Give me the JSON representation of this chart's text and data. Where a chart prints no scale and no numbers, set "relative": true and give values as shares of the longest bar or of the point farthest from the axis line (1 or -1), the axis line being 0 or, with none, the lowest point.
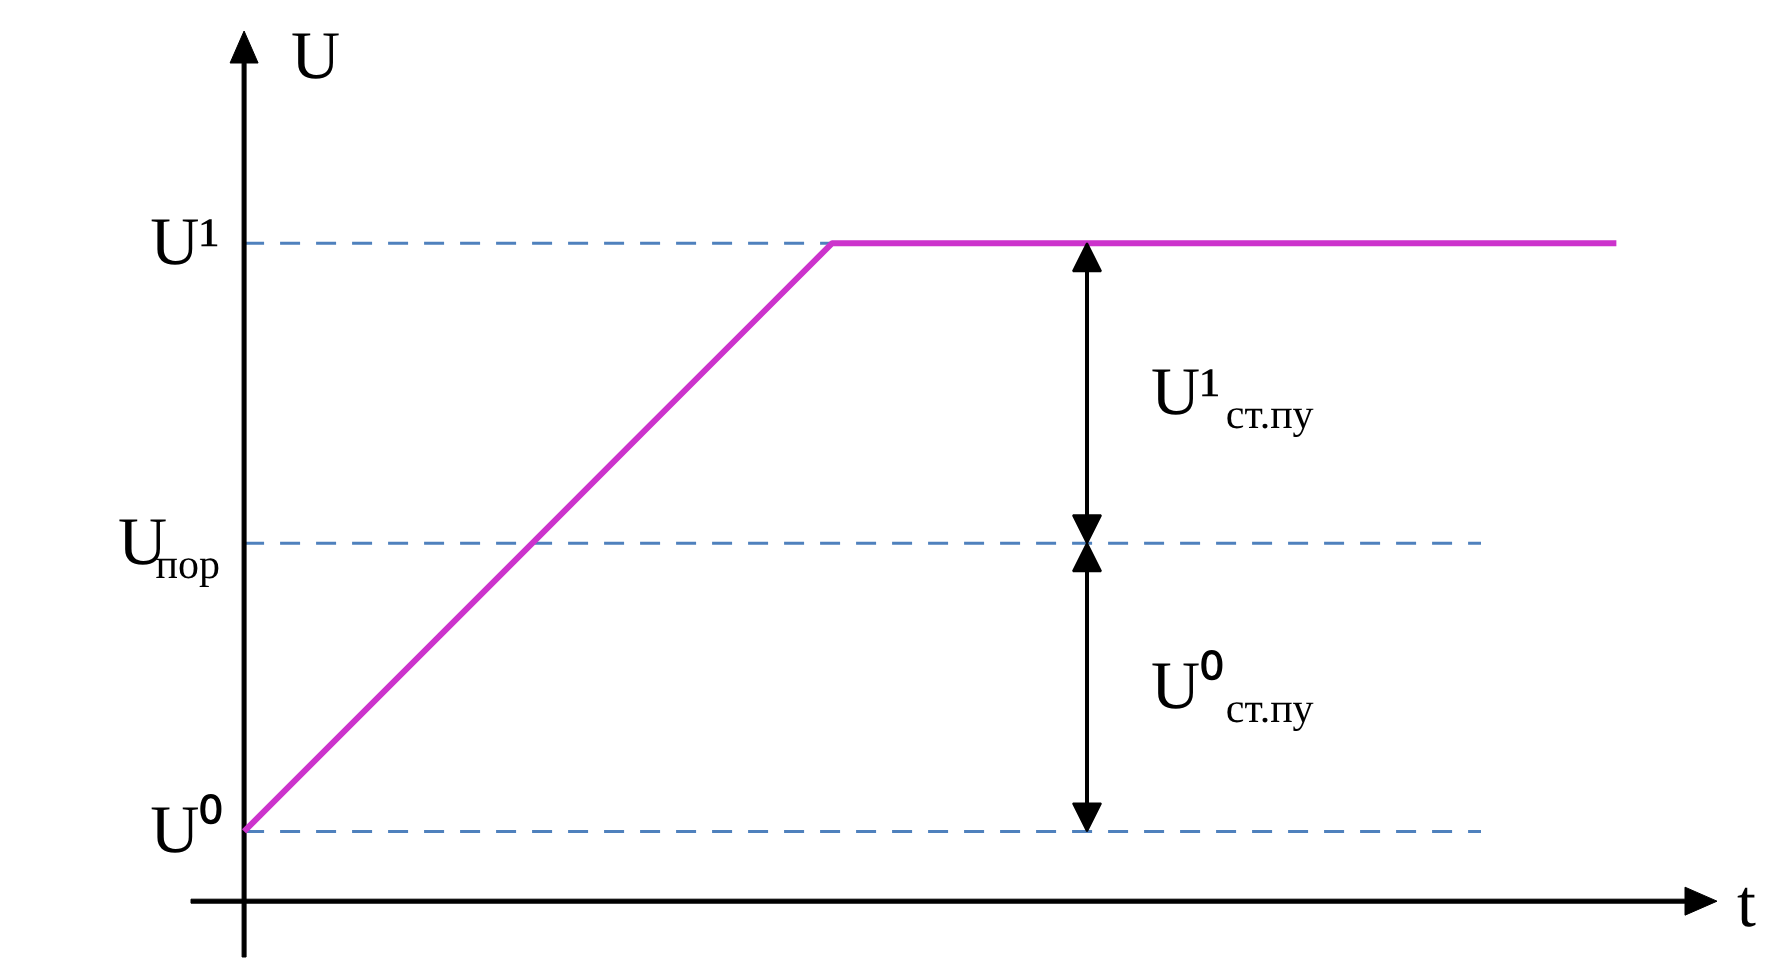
{
  "chart_data": {
    "type": "line",
    "relative": true,
    "xlabel": "t",
    "ylabel": "U",
    "categories": [
      null,
      null,
      null,
      null,
      null,
      null,
      null,
      null
    ],
    "series": [
      {
        "color": "#cc33cc",
        "values": [
          0.106,
          0.404,
          0.702,
          1,
          1,
          1,
          1,
          1
        ]
      }
    ],
    "ref_lines": [
      {
        "axis": "y",
        "value": 1,
        "label": "U¹",
        "color": "#4f81bd",
        "line_style": "dashed"
      },
      {
        "axis": "y",
        "value": 0.544,
        "label": "U$_{пор}$",
        "color": "#4f81bd",
        "line_style": "dashed"
      },
      {
        "axis": "y",
        "value": 0.106,
        "label": "U⁰",
        "color": "#4f81bd",
        "line_style": "dashed"
      }
    ],
    "annotations": [
      "U¹$_{ст.пу}$",
      "U⁰$_{ст.пу}$"
    ],
    "grid": false,
    "tick_labels": false,
    "marker": "none",
    "line_style": "solid"
  }
}
